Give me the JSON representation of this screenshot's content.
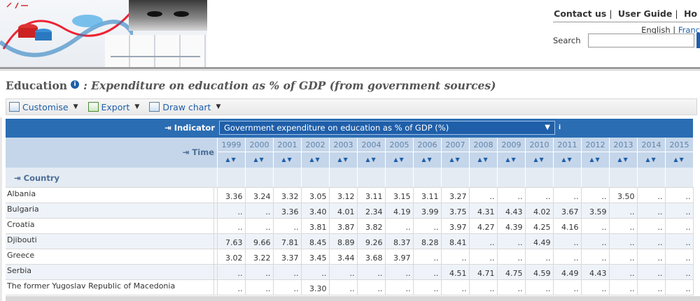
{
  "header": {
    "links": [
      "Contact us",
      "User Guide",
      "Ho"
    ],
    "languages": [
      "English",
      "Franc"
    ],
    "search_label": "Search",
    "search_value": ""
  },
  "title": {
    "subject": "Education",
    "info_glyph": "i",
    "rest": ": Expenditure on education as % of GDP (from government sources)"
  },
  "toolbar": {
    "customise": "Customise",
    "export": "Export",
    "draw_chart": "Draw chart"
  },
  "grid": {
    "indicator_label": "Indicator",
    "indicator_value": "Government expenditure on education as % of GDP (%)",
    "time_label": "Time",
    "country_label": "Country",
    "years": [
      "1999",
      "2000",
      "2001",
      "2002",
      "2003",
      "2004",
      "2005",
      "2006",
      "2007",
      "2008",
      "2009",
      "2010",
      "2011",
      "2012",
      "2013",
      "2014",
      "2015"
    ],
    "sort_glyph": "▲▼",
    "rows": [
      {
        "country": "Albania",
        "values": [
          "3.36",
          "3.24",
          "3.32",
          "3.05",
          "3.12",
          "3.11",
          "3.15",
          "3.11",
          "3.27",
          "..",
          "..",
          "..",
          "..",
          "..",
          "3.50",
          "..",
          ".."
        ]
      },
      {
        "country": "Bulgaria",
        "values": [
          "..",
          "..",
          "3.36",
          "3.40",
          "4.01",
          "2.34",
          "4.19",
          "3.99",
          "3.75",
          "4.31",
          "4.43",
          "4.02",
          "3.67",
          "3.59",
          "..",
          "..",
          ".."
        ]
      },
      {
        "country": "Croatia",
        "values": [
          "..",
          "..",
          "..",
          "3.81",
          "3.87",
          "3.82",
          "..",
          "..",
          "3.97",
          "4.27",
          "4.39",
          "4.25",
          "4.16",
          "..",
          "..",
          "..",
          ".."
        ]
      },
      {
        "country": "Djibouti",
        "values": [
          "7.63",
          "9.66",
          "7.81",
          "8.45",
          "8.89",
          "9.26",
          "8.37",
          "8.28",
          "8.41",
          "..",
          "..",
          "4.49",
          "..",
          "..",
          "..",
          "..",
          ".."
        ]
      },
      {
        "country": "Greece",
        "values": [
          "3.02",
          "3.22",
          "3.37",
          "3.45",
          "3.44",
          "3.68",
          "3.97",
          "..",
          "..",
          "..",
          "..",
          "..",
          "..",
          "..",
          "..",
          "..",
          ".."
        ]
      },
      {
        "country": "Serbia",
        "values": [
          "..",
          "..",
          "..",
          "..",
          "..",
          "..",
          "..",
          "..",
          "4.51",
          "4.71",
          "4.75",
          "4.59",
          "4.49",
          "4.43",
          "..",
          "..",
          ".."
        ]
      },
      {
        "country": "The former Yugoslav Republic of Macedonia",
        "values": [
          "..",
          "..",
          "..",
          "3.30",
          "..",
          "..",
          "..",
          "..",
          "..",
          "..",
          "..",
          "..",
          "..",
          "..",
          "..",
          "..",
          ".."
        ]
      }
    ]
  },
  "colors": {
    "accent": "#1f5fa9",
    "indicator_bar": "#2b6db3",
    "time_bar": "#c5d6ea",
    "row_alt": "#eef3f9"
  }
}
